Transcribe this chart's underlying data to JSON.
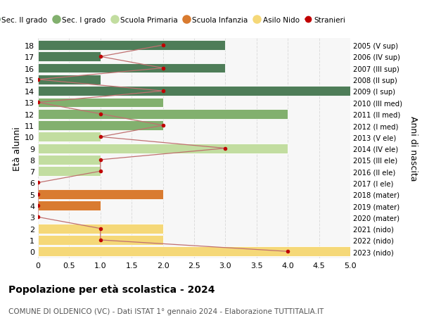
{
  "ages": [
    18,
    17,
    16,
    15,
    14,
    13,
    12,
    11,
    10,
    9,
    8,
    7,
    6,
    5,
    4,
    3,
    2,
    1,
    0
  ],
  "right_labels": [
    "2005 (V sup)",
    "2006 (IV sup)",
    "2007 (III sup)",
    "2008 (II sup)",
    "2009 (I sup)",
    "2010 (III med)",
    "2011 (II med)",
    "2012 (I med)",
    "2013 (V ele)",
    "2014 (IV ele)",
    "2015 (III ele)",
    "2016 (II ele)",
    "2017 (I ele)",
    "2018 (mater)",
    "2019 (mater)",
    "2020 (mater)",
    "2021 (nido)",
    "2022 (nido)",
    "2023 (nido)"
  ],
  "bar_values": [
    3,
    1,
    3,
    1,
    5,
    2,
    4,
    2,
    1,
    4,
    1,
    1,
    0,
    2,
    1,
    0,
    2,
    2,
    5
  ],
  "bar_colors": [
    "#4e7d58",
    "#4e7d58",
    "#4e7d58",
    "#4e7d58",
    "#4e7d58",
    "#82b06e",
    "#82b06e",
    "#82b06e",
    "#c2dda0",
    "#c2dda0",
    "#c2dda0",
    "#c2dda0",
    "#c2dda0",
    "#d97b30",
    "#d97b30",
    "#d97b30",
    "#f5d878",
    "#f5d878",
    "#f5d878"
  ],
  "stranieri_x": [
    2,
    1,
    2,
    0,
    2,
    0,
    1,
    2,
    1,
    3,
    1,
    1,
    0,
    0,
    0,
    0,
    1,
    1,
    4
  ],
  "stranieri_line_color": "#c07070",
  "stranieri_dot_color": "#c00000",
  "legend_items": [
    {
      "label": "Sec. II grado",
      "color": "#4e7d58"
    },
    {
      "label": "Sec. I grado",
      "color": "#82b06e"
    },
    {
      "label": "Scuola Primaria",
      "color": "#c2dda0"
    },
    {
      "label": "Scuola Infanzia",
      "color": "#d97b30"
    },
    {
      "label": "Asilo Nido",
      "color": "#f5d878"
    },
    {
      "label": "Stranieri",
      "color": "#c00000"
    }
  ],
  "ylabel_left": "Età alunni",
  "ylabel_right": "Anni di nascita",
  "xlim": [
    0,
    5.0
  ],
  "xticks": [
    0,
    0.5,
    1.0,
    1.5,
    2.0,
    2.5,
    3.0,
    3.5,
    4.0,
    4.5,
    5.0
  ],
  "xtick_labels": [
    "0",
    "0.5",
    "1.0",
    "1.5",
    "2.0",
    "2.5",
    "3.0",
    "3.5",
    "4.0",
    "4.5",
    "5.0"
  ],
  "title": "Popolazione per età scolastica - 2024",
  "subtitle": "COMUNE DI OLDENICO (VC) - Dati ISTAT 1° gennaio 2024 - Elaborazione TUTTITALIA.IT",
  "background_color": "#ffffff",
  "plot_bg_color": "#f7f7f7",
  "bar_height": 0.85,
  "grid_color": "#dddddd"
}
